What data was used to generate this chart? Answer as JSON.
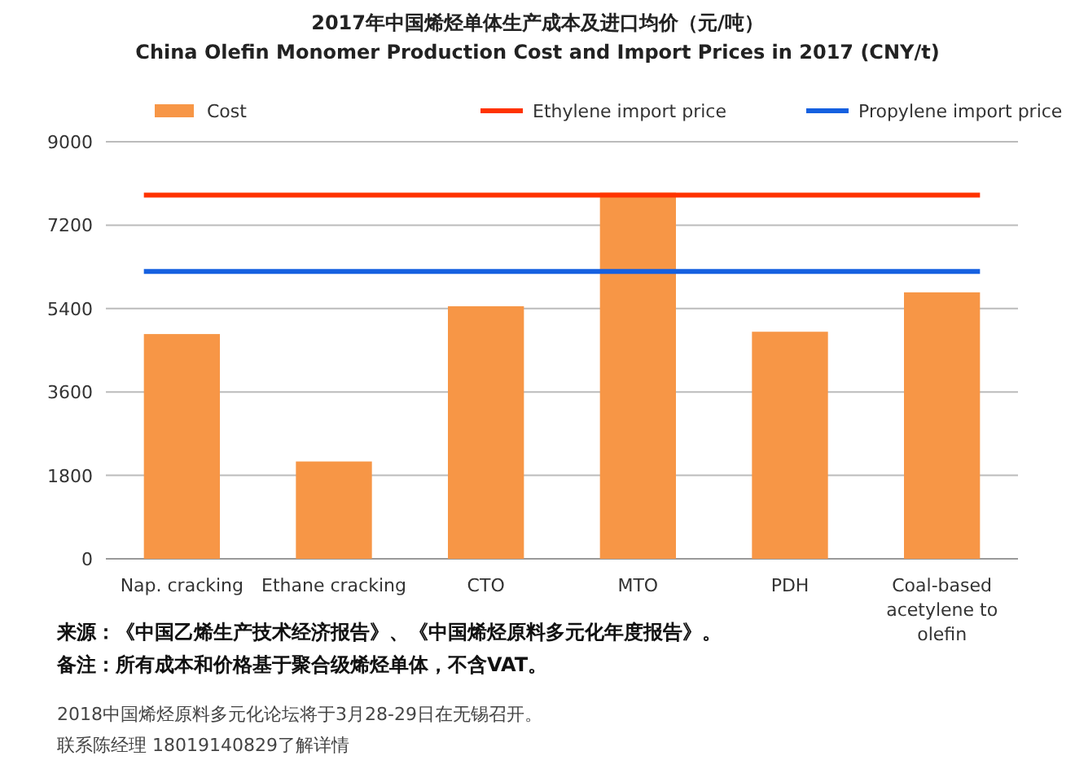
{
  "chart_data": {
    "type": "bar",
    "title": "2017年中国烯烃单体生产成本及进口均价（元/吨）",
    "subtitle": "China Olefin Monomer Production Cost and Import Prices in 2017 (CNY/t)",
    "categories": [
      "Nap. cracking",
      "Ethane cracking",
      "CTO",
      "MTO",
      "PDH",
      "Coal-based acetylene to olefin"
    ],
    "series": [
      {
        "name": "Cost",
        "color": "#f79646",
        "values": [
          4850,
          2100,
          5450,
          7900,
          4900,
          5750
        ]
      }
    ],
    "ref_lines": [
      {
        "axis": "y",
        "value": 7850,
        "label": "Ethylene import price",
        "color": "#ff3300"
      },
      {
        "axis": "y",
        "value": 6200,
        "label": "Propylene import price",
        "color": "#1560e0"
      }
    ],
    "ylim": [
      0,
      9000
    ],
    "yticks": [
      0,
      1800,
      3600,
      5400,
      7200,
      9000
    ],
    "grid": "y",
    "legend": "top",
    "annotations": [
      "来源：《中国乙烯生产技术经济报告》、《中国烯烃原料多元化年度报告》。",
      "备注：所有成本和价格基于聚合级烯烃单体，不含VAT。",
      "2018中国烯烃原料多元化论坛将于3月28-29日在无锡召开。",
      "联系陈经理 18019140829了解详情"
    ]
  }
}
